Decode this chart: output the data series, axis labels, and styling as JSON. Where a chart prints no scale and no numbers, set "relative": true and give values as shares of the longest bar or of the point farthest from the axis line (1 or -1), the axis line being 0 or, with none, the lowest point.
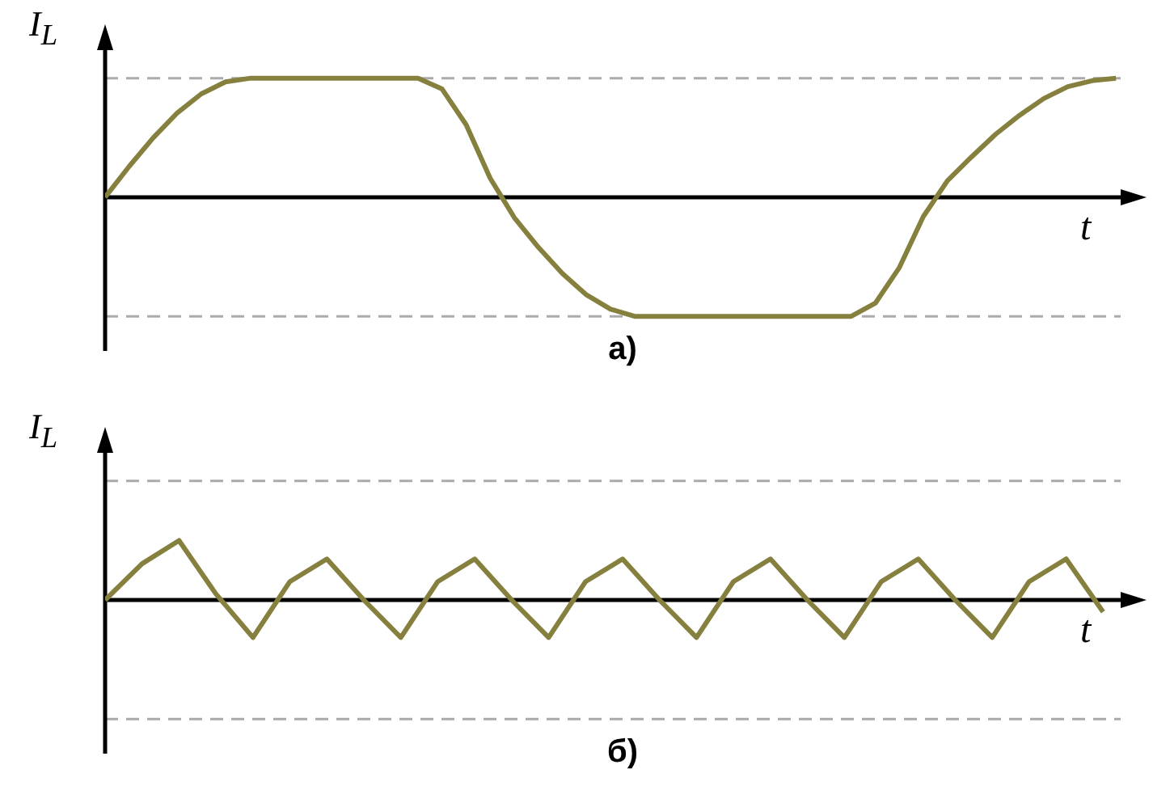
{
  "chart_data": [
    {
      "type": "line",
      "title": "а)",
      "xlabel": "t",
      "ylabel": "I$_{L}$",
      "relative": true,
      "legend": false,
      "categories": [
        null,
        null,
        null,
        null,
        null,
        null,
        null,
        null,
        null,
        null,
        null,
        null,
        null,
        null,
        null,
        null,
        null,
        null,
        null,
        null,
        null,
        null,
        null,
        null,
        null,
        null,
        null,
        null,
        null,
        null,
        null,
        null,
        null,
        null,
        null,
        null,
        null,
        null,
        null,
        null,
        null,
        null,
        null
      ],
      "series": [
        {
          "color": "#86803f",
          "values": [
            0,
            0.26,
            0.5,
            0.71,
            0.87,
            0.97,
            1,
            1,
            1,
            1,
            1,
            1,
            1,
            1,
            0.91,
            0.61,
            0.16,
            -0.17,
            -0.42,
            -0.64,
            -0.82,
            -0.94,
            -1,
            -1,
            -1,
            -1,
            -1,
            -1,
            -1,
            -1,
            -1,
            -1,
            -0.89,
            -0.59,
            -0.16,
            0.14,
            0.34,
            0.53,
            0.69,
            0.83,
            0.93,
            0.98,
            1
          ]
        }
      ],
      "ref_lines": [
        {
          "axis": "y",
          "value": 1,
          "color": "#aaaaaa",
          "line_style": "dashed"
        },
        {
          "axis": "y",
          "value": -1,
          "color": "#aaaaaa",
          "line_style": "dashed"
        }
      ]
    },
    {
      "type": "line",
      "title": "б)",
      "xlabel": "t",
      "ylabel": "I$_{L}$",
      "relative": true,
      "legend": false,
      "categories": [
        null,
        null,
        null,
        null,
        null,
        null,
        null,
        null,
        null,
        null,
        null,
        null,
        null,
        null,
        null,
        null,
        null,
        null,
        null,
        null,
        null,
        null,
        null,
        null,
        null,
        null,
        null,
        null
      ],
      "series": [
        {
          "color": "#86803f",
          "values": [
            0,
            0.61,
            1,
            0.1,
            -0.63,
            0.31,
            0.69,
            0,
            -0.63,
            0.31,
            0.69,
            0,
            -0.63,
            0.31,
            0.69,
            0,
            -0.63,
            0.31,
            0.69,
            0,
            -0.63,
            0.31,
            0.69,
            0,
            -0.63,
            0.31,
            0.69,
            -0.2
          ]
        }
      ],
      "ref_lines": [
        {
          "axis": "y",
          "value": 2,
          "color": "#aaaaaa",
          "line_style": "dashed"
        },
        {
          "axis": "y",
          "value": -2,
          "color": "#aaaaaa",
          "line_style": "dashed"
        }
      ]
    }
  ]
}
